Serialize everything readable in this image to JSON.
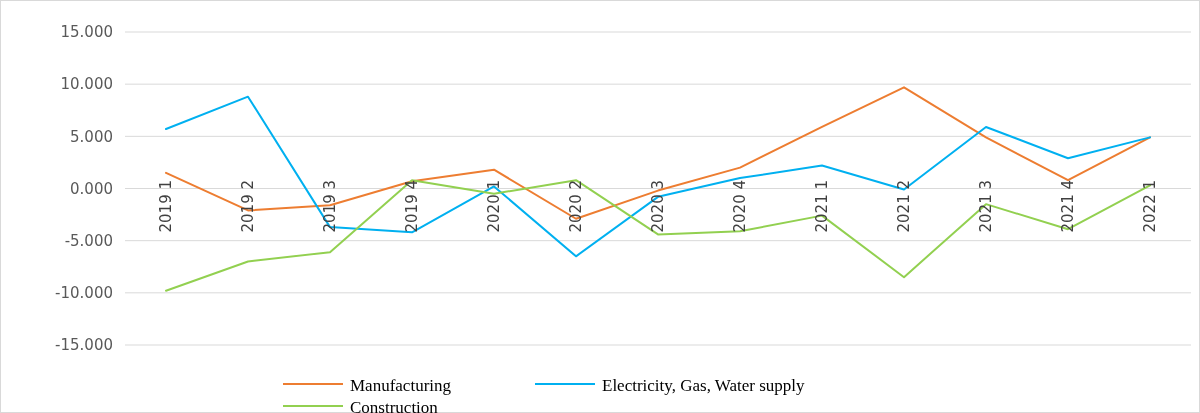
{
  "chart_data": {
    "type": "line",
    "categories": [
      "2019 1",
      "2019 2",
      "2019 3",
      "2019 4",
      "2020 1",
      "2020 2",
      "2020 3",
      "2020 4",
      "2021 1",
      "2021 2",
      "2021 3",
      "2021 4",
      "2022 1"
    ],
    "series": [
      {
        "name": "Manufacturing",
        "color": "#ed7d31",
        "values": [
          1.5,
          -2.1,
          -1.6,
          0.7,
          1.8,
          -2.9,
          -0.2,
          2.0,
          5.9,
          9.7,
          4.9,
          0.8,
          4.9
        ]
      },
      {
        "name": "Electricity, Gas, Water supply",
        "color": "#00b0f0",
        "values": [
          5.7,
          8.8,
          -3.7,
          -4.2,
          0.2,
          -6.5,
          -0.8,
          1.0,
          2.2,
          -0.1,
          5.9,
          2.9,
          4.9
        ]
      },
      {
        "name": "Construction",
        "color": "#92d050",
        "values": [
          -9.8,
          -7.0,
          -6.1,
          0.8,
          -0.5,
          0.8,
          -4.4,
          -4.1,
          -2.6,
          -8.5,
          -1.5,
          -3.9,
          0.3
        ]
      }
    ],
    "ylim": [
      -15,
      15
    ],
    "yticks": [
      {
        "value": -15,
        "label": "-15.000"
      },
      {
        "value": -10,
        "label": "-10.000"
      },
      {
        "value": -5,
        "label": "-5.000"
      },
      {
        "value": 0,
        "label": "0.000"
      },
      {
        "value": 5,
        "label": "5.000"
      },
      {
        "value": 10,
        "label": "10.000"
      },
      {
        "value": 15,
        "label": "15.000"
      }
    ],
    "grid": "y",
    "legend": "bottom",
    "marker": "none",
    "line_style": "solid"
  }
}
